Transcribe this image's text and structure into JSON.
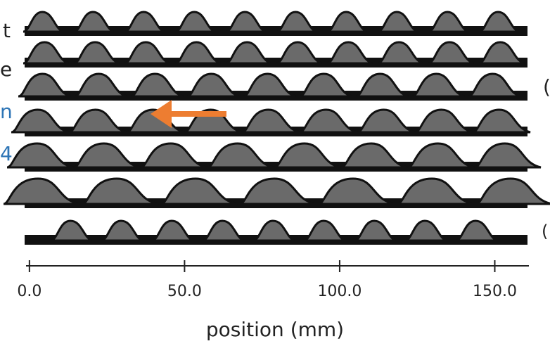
{
  "left_fragments": [
    "t",
    "e",
    "n",
    "4"
  ],
  "right_fragments": [
    "(",
    "("
  ],
  "axis": {
    "label": "position (mm)",
    "xlim": [
      -1.1,
      161
    ],
    "ticks": [
      {
        "value": 0,
        "label": "0.0"
      },
      {
        "value": 50,
        "label": "50.0"
      },
      {
        "value": 100,
        "label": "100.0"
      },
      {
        "value": 150,
        "label": "150.0"
      }
    ]
  }
}
